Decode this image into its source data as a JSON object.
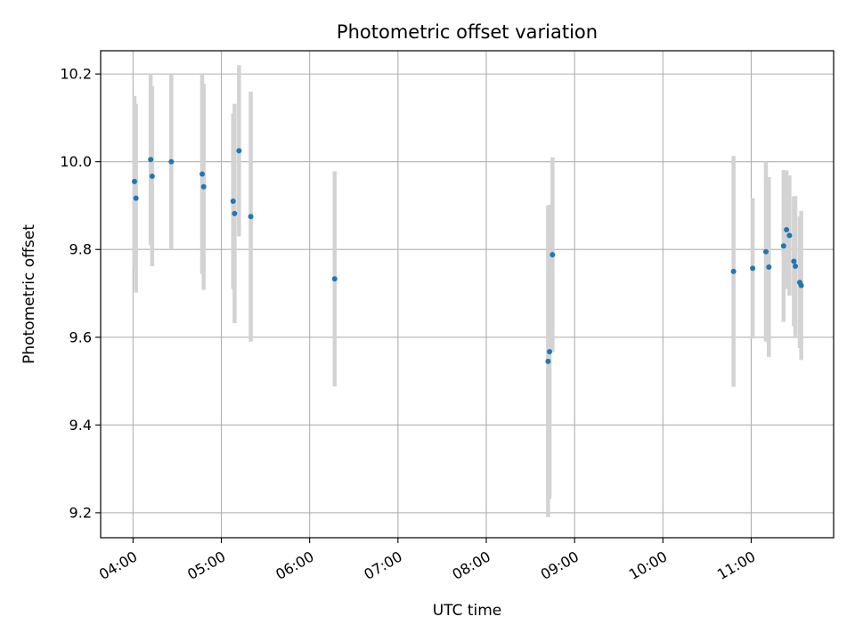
{
  "chart_data": {
    "type": "scatter",
    "title": "Photometric offset variation",
    "xlabel": "UTC time",
    "ylabel": "Photometric offset",
    "x_ticks": [
      "04:00",
      "05:00",
      "06:00",
      "07:00",
      "08:00",
      "09:00",
      "10:00",
      "11:00"
    ],
    "y_ticks": [
      "9.2",
      "9.4",
      "9.6",
      "9.8",
      "10.0",
      "10.2"
    ],
    "xlim": [
      "03:38",
      "11:56"
    ],
    "ylim": [
      9.143,
      10.253
    ],
    "grid": true,
    "colors": {
      "marker": "#1f77b4",
      "errorbar": "#d3d3d3",
      "grid": "#b0b0b0"
    },
    "points": [
      {
        "x": "04:01",
        "y": 9.955,
        "err": 0.195
      },
      {
        "x": "04:02",
        "y": 9.917,
        "err": 0.215
      },
      {
        "x": "04:12",
        "y": 10.005,
        "err": 0.195
      },
      {
        "x": "04:13",
        "y": 9.967,
        "err": 0.205
      },
      {
        "x": "04:26",
        "y": 10.0,
        "err": 0.2
      },
      {
        "x": "04:47",
        "y": 9.972,
        "err": 0.228
      },
      {
        "x": "04:48",
        "y": 9.943,
        "err": 0.235
      },
      {
        "x": "05:08",
        "y": 9.91,
        "err": 0.2
      },
      {
        "x": "05:09",
        "y": 9.882,
        "err": 0.25
      },
      {
        "x": "05:12",
        "y": 10.025,
        "err": 0.195
      },
      {
        "x": "05:20",
        "y": 9.875,
        "err": 0.285
      },
      {
        "x": "06:17",
        "y": 9.733,
        "err": 0.245
      },
      {
        "x": "08:42",
        "y": 9.545,
        "err": 0.355
      },
      {
        "x": "08:43",
        "y": 9.567,
        "err": 0.335
      },
      {
        "x": "08:45",
        "y": 9.788,
        "err": 0.222
      },
      {
        "x": "10:48",
        "y": 9.75,
        "err": 0.263
      },
      {
        "x": "11:01",
        "y": 9.757,
        "err": 0.16
      },
      {
        "x": "11:10",
        "y": 9.795,
        "err": 0.205
      },
      {
        "x": "11:12",
        "y": 9.76,
        "err": 0.205
      },
      {
        "x": "11:22",
        "y": 9.808,
        "err": 0.173
      },
      {
        "x": "11:24",
        "y": 9.845,
        "err": 0.135
      },
      {
        "x": "11:26",
        "y": 9.832,
        "err": 0.137
      },
      {
        "x": "11:29",
        "y": 9.773,
        "err": 0.148
      },
      {
        "x": "11:30",
        "y": 9.762,
        "err": 0.16
      },
      {
        "x": "11:33",
        "y": 9.725,
        "err": 0.15
      },
      {
        "x": "11:34",
        "y": 9.718,
        "err": 0.17
      }
    ]
  }
}
